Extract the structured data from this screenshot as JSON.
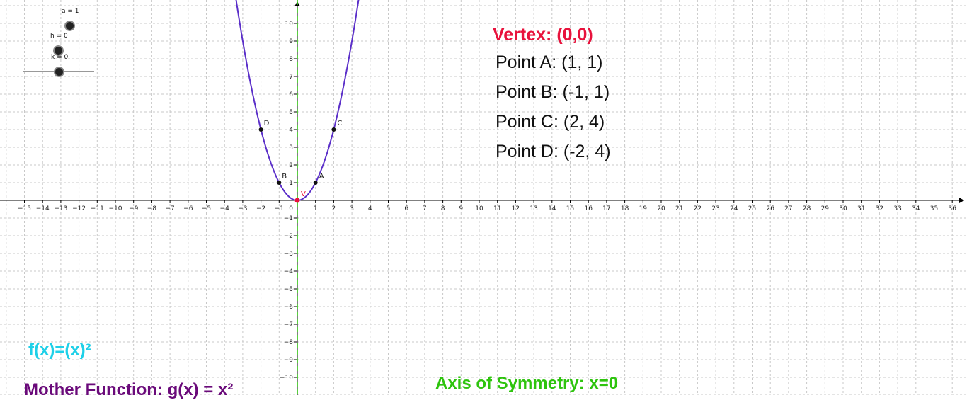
{
  "sliders": [
    {
      "label": "a = 1",
      "value": 1
    },
    {
      "label": "h = 0",
      "value": 0
    },
    {
      "label": "k = 0",
      "value": 0
    }
  ],
  "info": {
    "vertex": "Vertex: (0,0)",
    "points": [
      "Point A: (1, 1)",
      "Point B: (-1, 1)",
      "Point C: (2, 4)",
      "Point D: (-2, 4)"
    ],
    "function": "f(x)=(x)²",
    "mother": "Mother Function: g(x) = x²",
    "symmetry": "Axis of Symmetry: x=0"
  },
  "colors": {
    "curve": "#5b2fc9",
    "axis_of_symmetry": "#2ec40e",
    "vertex": "#e8123c",
    "grid": "#c8c8c8",
    "axes": "#000000"
  },
  "chart_data": {
    "type": "line",
    "function": "f(x) = a(x - h)^2 + k",
    "params": {
      "a": 1,
      "h": 0,
      "k": 0
    },
    "xlim": [
      -16,
      37
    ],
    "ylim": [
      -11,
      11
    ],
    "xticks": [
      -15,
      -14,
      -13,
      -12,
      -11,
      -10,
      -9,
      -8,
      -7,
      -6,
      -5,
      -4,
      -3,
      -2,
      -1,
      1,
      2,
      3,
      4,
      5,
      6,
      7,
      8,
      9,
      10,
      11,
      12,
      13,
      14,
      15,
      16,
      17,
      18,
      19,
      20,
      21,
      22,
      23,
      24,
      25,
      26,
      27,
      28,
      29,
      30,
      31,
      32,
      33,
      34,
      35,
      36
    ],
    "yticks": [
      -10,
      -9,
      -8,
      -7,
      -6,
      -5,
      -4,
      -3,
      -2,
      -1,
      1,
      2,
      3,
      4,
      5,
      6,
      7,
      8,
      9,
      10
    ],
    "origin_label": "0",
    "grid": true,
    "axis_of_symmetry_x": 0,
    "points": [
      {
        "label": "V",
        "x": 0,
        "y": 0
      },
      {
        "label": "A",
        "x": 1,
        "y": 1
      },
      {
        "label": "B",
        "x": -1,
        "y": 1
      },
      {
        "label": "C",
        "x": 2,
        "y": 4
      },
      {
        "label": "D",
        "x": -2,
        "y": 4
      }
    ]
  }
}
